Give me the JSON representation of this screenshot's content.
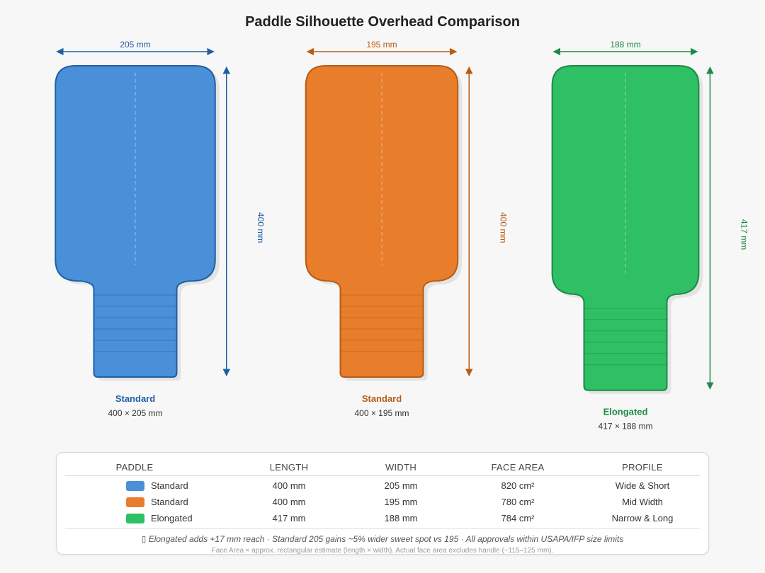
{
  "title": "Paddle Silhouette Overhead Comparison",
  "colors": {
    "standard_205": "#4a90d9",
    "standard_205_dark": "#1f5fa6",
    "standard_195": "#e87d2c",
    "standard_195_dark": "#b85c14",
    "elongated": "#2fbf65",
    "elongated_dark": "#1e8a47"
  },
  "chart_data": {
    "type": "diagram",
    "units": "mm",
    "paddles": [
      {
        "name": "Standard",
        "length": 400,
        "width": 205,
        "width_label": "205 mm",
        "length_label": "400 mm",
        "size_label": "400 × 205 mm",
        "color": "#4a90d9",
        "dark": "#1f5fa6"
      },
      {
        "name": "Standard",
        "length": 400,
        "width": 195,
        "width_label": "195 mm",
        "length_label": "400 mm",
        "size_label": "400 × 195 mm",
        "color": "#e87d2c",
        "dark": "#b85c14"
      },
      {
        "name": "Elongated",
        "length": 417,
        "width": 188,
        "width_label": "188 mm",
        "length_label": "417 mm",
        "size_label": "417 × 188 mm",
        "color": "#2fbf65",
        "dark": "#1e8a47"
      }
    ]
  },
  "table": {
    "headers": {
      "paddle": "PADDLE",
      "length": "LENGTH",
      "width": "WIDTH",
      "face_area": "FACE AREA",
      "profile": "PROFILE"
    },
    "rows": [
      {
        "swatch": "#4a90d9",
        "name": "Standard",
        "length": "400 mm",
        "width": "205 mm",
        "face_area": "820 cm²",
        "profile": "Wide & Short"
      },
      {
        "swatch": "#e87d2c",
        "name": "Standard",
        "length": "400 mm",
        "width": "195 mm",
        "face_area": "780 cm²",
        "profile": "Mid Width"
      },
      {
        "swatch": "#2fbf65",
        "name": "Elongated",
        "length": "417 mm",
        "width": "188 mm",
        "face_area": "784 cm²",
        "profile": "Narrow & Long"
      }
    ],
    "note": "▯ Elongated adds +17 mm reach · Standard 205 gains ~5% wider sweet spot vs 195 · All approvals within USAPA/IFP size limits",
    "footnote": "Face Area ≈ approx. rectangular estimate (length × width). Actual face area excludes handle (~115–125 mm)."
  }
}
